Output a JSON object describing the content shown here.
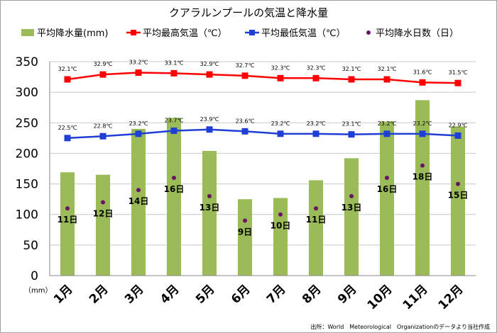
{
  "chart_data": {
    "type": "bar",
    "title": "クアラルンプールの気温と降水量",
    "categories": [
      "1月",
      "2月",
      "3月",
      "4月",
      "5月",
      "6月",
      "7月",
      "8月",
      "9月",
      "10月",
      "11月",
      "12月"
    ],
    "series": [
      {
        "name": "平均降水量(mm)",
        "kind": "bar",
        "color": "#9bbb59",
        "values": [
          169,
          165,
          240,
          258,
          204,
          125,
          127,
          156,
          192,
          252,
          287,
          244
        ]
      },
      {
        "name": "平均最高気温（℃）",
        "kind": "line",
        "color": "#ff0000",
        "marker": "square",
        "values": [
          32.1,
          32.9,
          33.2,
          33.1,
          32.9,
          32.7,
          32.3,
          32.3,
          32.1,
          32.1,
          31.6,
          31.5
        ],
        "labels": [
          "32.1℃",
          "32.9℃",
          "33.2℃",
          "33.1℃",
          "32.9℃",
          "32.7℃",
          "32.3℃",
          "32.3℃",
          "32.1℃",
          "32.1℃",
          "31.6℃",
          "31.5℃"
        ]
      },
      {
        "name": "平均最低気温（℃）",
        "kind": "line",
        "color": "#1f3fd6",
        "marker": "square",
        "values": [
          22.5,
          22.8,
          23.2,
          23.7,
          23.9,
          23.6,
          23.2,
          23.2,
          23.1,
          23.2,
          23.2,
          22.9
        ],
        "labels": [
          "22.5℃",
          "22.8℃",
          "23.2℃",
          "23.7℃",
          "23.9℃",
          "23.6℃",
          "23.2℃",
          "23.2℃",
          "23.1℃",
          "23.2℃",
          "23.2℃",
          "22.9℃"
        ]
      },
      {
        "name": "平均降水日数（日）",
        "kind": "point",
        "color": "#6b1464",
        "values": [
          11,
          12,
          14,
          16,
          13,
          9,
          10,
          11,
          13,
          16,
          18,
          15
        ],
        "labels": [
          "11日",
          "12日",
          "14日",
          "16日",
          "13日",
          "9日",
          "10日",
          "11日",
          "13日",
          "16日",
          "18日",
          "15日"
        ]
      }
    ],
    "ylim": [
      0,
      350
    ],
    "yticks": [
      "0",
      "50",
      "100",
      "150",
      "200",
      "250",
      "300",
      "350"
    ],
    "ytick_values": [
      0,
      50,
      100,
      150,
      200,
      250,
      300,
      350
    ],
    "ylabel": "（mm）",
    "grid": true,
    "legend_placement": "top",
    "source": "出所：World　Meteorological　Organizationのデータより当社作成"
  }
}
